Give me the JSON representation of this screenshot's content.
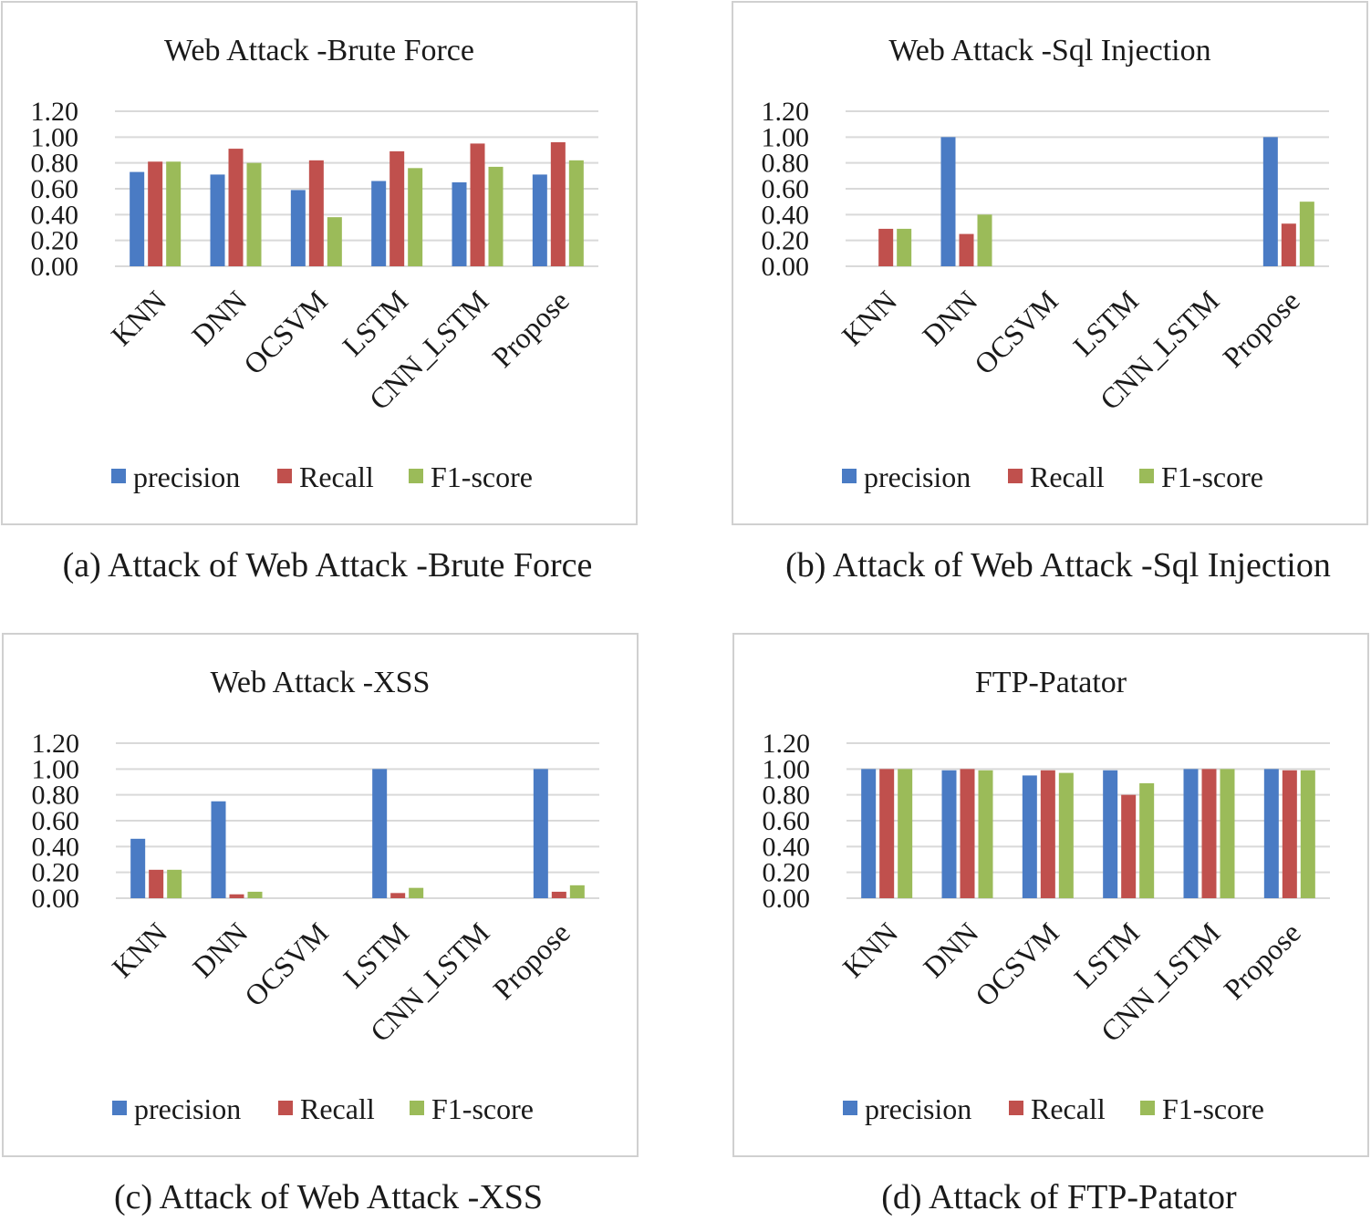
{
  "legend": {
    "precision": "precision",
    "recall": "Recall",
    "f1": "F1-score"
  },
  "colors": {
    "precision": "#4a7bc4",
    "recall": "#c0504d",
    "f1": "#9bbb59",
    "grid": "#d9d9d9",
    "frame": "#d0d0d0"
  },
  "chart_data": [
    {
      "type": "bar",
      "title": "Web Attack -Brute Force",
      "caption": "(a) Attack of Web Attack -Brute Force",
      "categories": [
        "KNN",
        "DNN",
        "OCSVM",
        "LSTM",
        "CNN_LSTM",
        "Propose"
      ],
      "series": [
        {
          "name": "precision",
          "values": [
            0.73,
            0.71,
            0.59,
            0.66,
            0.65,
            0.71
          ]
        },
        {
          "name": "Recall",
          "values": [
            0.81,
            0.91,
            0.82,
            0.89,
            0.95,
            0.96
          ]
        },
        {
          "name": "F1-score",
          "values": [
            0.81,
            0.8,
            0.38,
            0.76,
            0.77,
            0.82
          ]
        }
      ],
      "ylim": [
        0,
        1.2
      ],
      "yticks": [
        "0.00",
        "0.20",
        "0.40",
        "0.60",
        "0.80",
        "1.00",
        "1.20"
      ],
      "grid": true,
      "legend_position": "bottom"
    },
    {
      "type": "bar",
      "title": "Web Attack -Sql Injection",
      "caption": "(b) Attack of Web Attack -Sql Injection",
      "categories": [
        "KNN",
        "DNN",
        "OCSVM",
        "LSTM",
        "CNN_LSTM",
        "Propose"
      ],
      "series": [
        {
          "name": "precision",
          "values": [
            0,
            1.0,
            0,
            0,
            0,
            1.0
          ]
        },
        {
          "name": "Recall",
          "values": [
            0.29,
            0.25,
            0,
            0,
            0,
            0.33
          ]
        },
        {
          "name": "F1-score",
          "values": [
            0.29,
            0.4,
            0,
            0,
            0,
            0.5
          ]
        }
      ],
      "ylim": [
        0,
        1.2
      ],
      "yticks": [
        "0.00",
        "0.20",
        "0.40",
        "0.60",
        "0.80",
        "1.00",
        "1.20"
      ],
      "grid": true,
      "legend_position": "bottom"
    },
    {
      "type": "bar",
      "title": "Web Attack -XSS",
      "caption": "(c) Attack of Web Attack -XSS",
      "categories": [
        "KNN",
        "DNN",
        "OCSVM",
        "LSTM",
        "CNN_LSTM",
        "Propose"
      ],
      "series": [
        {
          "name": "precision",
          "values": [
            0.46,
            0.75,
            0,
            1.0,
            0,
            1.0
          ]
        },
        {
          "name": "Recall",
          "values": [
            0.22,
            0.03,
            0,
            0.04,
            0,
            0.05
          ]
        },
        {
          "name": "F1-score",
          "values": [
            0.22,
            0.05,
            0,
            0.08,
            0,
            0.1
          ]
        }
      ],
      "ylim": [
        0,
        1.2
      ],
      "yticks": [
        "0.00",
        "0.20",
        "0.40",
        "0.60",
        "0.80",
        "1.00",
        "1.20"
      ],
      "grid": true,
      "legend_position": "bottom"
    },
    {
      "type": "bar",
      "title": "FTP-Patator",
      "caption": "(d) Attack of FTP-Patator",
      "categories": [
        "KNN",
        "DNN",
        "OCSVM",
        "LSTM",
        "CNN_LSTM",
        "Propose"
      ],
      "series": [
        {
          "name": "precision",
          "values": [
            1.0,
            0.99,
            0.95,
            0.99,
            1.0,
            1.0
          ]
        },
        {
          "name": "Recall",
          "values": [
            1.0,
            1.0,
            0.99,
            0.8,
            1.0,
            0.99
          ]
        },
        {
          "name": "F1-score",
          "values": [
            1.0,
            0.99,
            0.97,
            0.89,
            1.0,
            0.99
          ]
        }
      ],
      "ylim": [
        0,
        1.2
      ],
      "yticks": [
        "0.00",
        "0.20",
        "0.40",
        "0.60",
        "0.80",
        "1.00",
        "1.20"
      ],
      "grid": true,
      "legend_position": "bottom"
    }
  ]
}
